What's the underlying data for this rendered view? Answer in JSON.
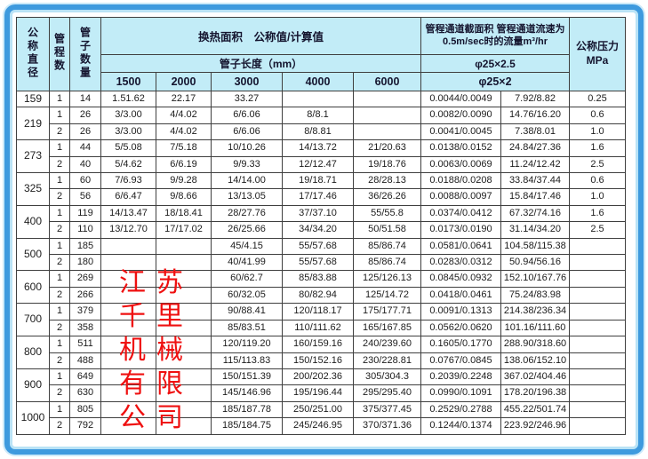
{
  "colors": {
    "frame_blue": "#3e9ade",
    "frame_light_blue": "#b9e3f6",
    "header_bg": "#c2ecf7",
    "grid_line": "#3f3f3f",
    "watermark_red": "#ef1010"
  },
  "watermark": {
    "text": "江苏千里机械有限公司"
  },
  "table": {
    "headers": {
      "col_diameter": "公称直径",
      "col_passes": "管程数",
      "col_tubes": "管子数量",
      "heat_area": "换热面积　公称值/计算值",
      "tube_length": "管子长度（mm）",
      "lengths": [
        "1500",
        "2000",
        "3000",
        "4000",
        "6000"
      ],
      "channel": "管程通道截面积 管程通道流速为0.5m/sec时的流量m³/hr",
      "phi1": "φ25×2.5",
      "phi2": "φ25×2",
      "pressure_line1": "公称压力",
      "pressure_line2": "MPa"
    },
    "rows": [
      {
        "d": "159",
        "ds": 1,
        "cells": [
          "1",
          "14",
          "1.51.62",
          "22.17",
          "33.27",
          "",
          "",
          "0.0044/0.0049",
          "7.92/8.82",
          "0.25"
        ]
      },
      {
        "d": "219",
        "ds": 2,
        "cells": [
          "1",
          "26",
          "3/3.00",
          "4/4.02",
          "6/6.06",
          "8/8.1",
          "",
          "0.0082/0.0090",
          "14.76/16.20",
          "0.6"
        ]
      },
      {
        "d": null,
        "cells": [
          "2",
          "26",
          "3/3.00",
          "4/4.02",
          "6/6.06",
          "8/8.81",
          "",
          "0.0041/0.0045",
          "7.38/8.01",
          "1.0"
        ]
      },
      {
        "d": "273",
        "ds": 2,
        "cells": [
          "1",
          "44",
          "5/5.08",
          "7/5.18",
          "10/10.26",
          "14/13.72",
          "21/20.63",
          "0.0138/0.0152",
          "24.84/27.36",
          "1.6"
        ]
      },
      {
        "d": null,
        "cells": [
          "2",
          "40",
          "5/4.62",
          "6/6.19",
          "9/9.33",
          "12/12.47",
          "19/18.76",
          "0.0063/0.0069",
          "11.24/12.42",
          "2.5"
        ]
      },
      {
        "d": "325",
        "ds": 2,
        "cells": [
          "1",
          "60",
          "7/6.93",
          "9/9.28",
          "14/14.00",
          "19/18.71",
          "28/28.13",
          "0.0188/0.0208",
          "33.84/37.44",
          "0.6"
        ]
      },
      {
        "d": null,
        "cells": [
          "2",
          "56",
          "6/6.47",
          "9/8.66",
          "13/13.05",
          "17/17.46",
          "36/26.26",
          "0.0088/0.0097",
          "15.84/17.46",
          "1.0"
        ]
      },
      {
        "d": "400",
        "ds": 2,
        "cells": [
          "1",
          "119",
          "14/13.47",
          "18/18.41",
          "28/27.76",
          "37/37.10",
          "55/55.8",
          "0.0374/0.0412",
          "67.32/74.16",
          "1.6"
        ]
      },
      {
        "d": null,
        "cells": [
          "2",
          "110",
          "13/12.70",
          "17/17.02",
          "26/25.66",
          "34/34.20",
          "50/51.58",
          "0.0173/0.0190",
          "31.14/34.20",
          "2.5"
        ]
      },
      {
        "d": "500",
        "ds": 2,
        "cells": [
          "1",
          "185",
          "",
          "",
          "45/4.15",
          "55/57.68",
          "85/86.74",
          "0.0581/0.0641",
          "104.58/115.38",
          ""
        ]
      },
      {
        "d": null,
        "cells": [
          "2",
          "180",
          "",
          "",
          "40/41.99",
          "55/57.68",
          "85/86.74",
          "0.0283/0.0312",
          "50.94/56.16",
          ""
        ]
      },
      {
        "d": "600",
        "ds": 2,
        "cells": [
          "1",
          "269",
          "",
          "",
          "60/62.7",
          "85/83.88",
          "125/126.13",
          "0.0845/0.0932",
          "152.10/167.76",
          ""
        ]
      },
      {
        "d": null,
        "cells": [
          "2",
          "266",
          "",
          "",
          "60/32.05",
          "80/82.94",
          "125/14.72",
          "0.0418/0.0461",
          "75.24/83.98",
          ""
        ]
      },
      {
        "d": "700",
        "ds": 2,
        "cells": [
          "1",
          "379",
          "",
          "",
          "90/88.41",
          "120/118.17",
          "175/177.71",
          "0.0091/0.1313",
          "214.38/236.34",
          ""
        ]
      },
      {
        "d": null,
        "cells": [
          "2",
          "358",
          "",
          "",
          "85/83.51",
          "110/111.62",
          "165/167.85",
          "0.0562/0.0620",
          "101.16/111.60",
          ""
        ]
      },
      {
        "d": "800",
        "ds": 2,
        "cells": [
          "1",
          "511",
          "",
          "",
          "120/119.20",
          "160/159.16",
          "240/239.60",
          "0.1605/0.1770",
          "288.90/318.60",
          ""
        ]
      },
      {
        "d": null,
        "cells": [
          "2",
          "488",
          "",
          "",
          "115/113.83",
          "150/152.16",
          "230/228.81",
          "0.0767/0.0845",
          "138.06/152.10",
          ""
        ]
      },
      {
        "d": "900",
        "ds": 2,
        "cells": [
          "1",
          "649",
          "",
          "",
          "150/151.39",
          "200/202.36",
          "305/304.3",
          "0.2039/0.2248",
          "367.02/404.46",
          ""
        ]
      },
      {
        "d": null,
        "cells": [
          "2",
          "630",
          "",
          "",
          "145/146.96",
          "195/196.44",
          "295/295.40",
          "0.0990/0.1091",
          "178.20/196.38",
          ""
        ]
      },
      {
        "d": "1000",
        "ds": 2,
        "cells": [
          "1",
          "805",
          "",
          "",
          "185/187.78",
          "250/251.00",
          "375/377.45",
          "0.2529/0.2788",
          "455.22/501.74",
          ""
        ]
      },
      {
        "d": null,
        "cells": [
          "2",
          "792",
          "",
          "",
          "185/184.75",
          "245/246.95",
          "370/371.36",
          "0.1244/0.1374",
          "223.92/246.96",
          ""
        ]
      }
    ]
  }
}
